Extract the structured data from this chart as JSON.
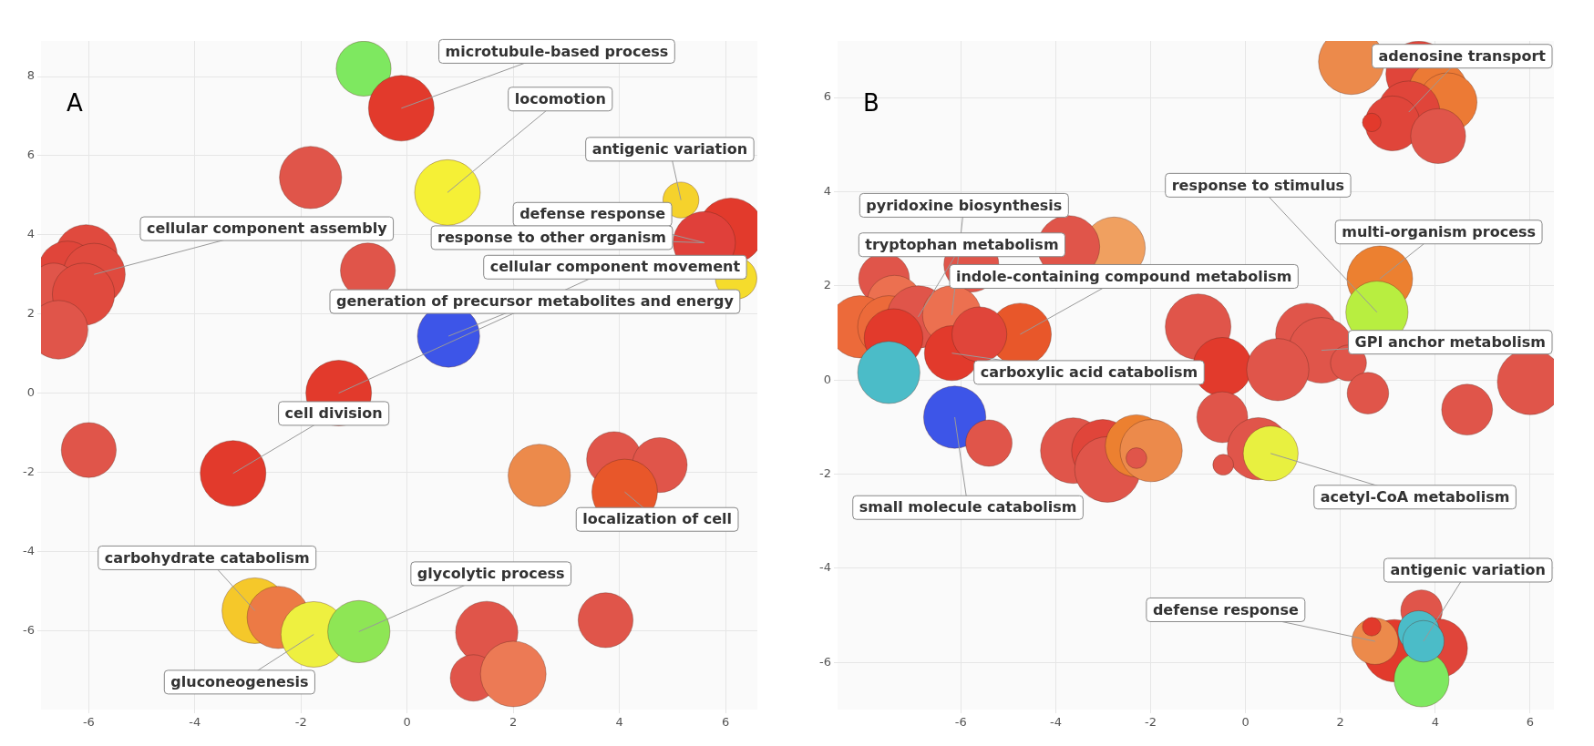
{
  "chart_data": [
    {
      "type": "bubble",
      "title": "A",
      "xlim": [
        -6.9,
        6.6
      ],
      "ylim": [
        -8,
        8.9
      ],
      "xticks": [
        -6,
        -4,
        -2,
        0,
        2,
        4,
        6
      ],
      "yticks": [
        -6,
        -4,
        -2,
        0,
        2,
        4,
        6,
        8
      ],
      "grid": true,
      "legend": false,
      "x": [
        -0.82,
        -0.11,
        -1.82,
        0.76,
        5.16,
        6.1,
        5.6,
        6.2,
        -0.74,
        -6.05,
        -6.4,
        -5.9,
        -6.66,
        -6.1,
        -6.57,
        0.78,
        -1.29,
        -6.0,
        -3.28,
        2.49,
        3.9,
        4.76,
        4.1,
        -2.87,
        -2.43,
        -1.76,
        -0.91,
        1.5,
        3.74,
        1.25,
        2.0
      ],
      "values": [
        8.2,
        7.2,
        5.45,
        5.07,
        4.88,
        4.1,
        3.8,
        2.9,
        3.1,
        3.47,
        3.1,
        3.0,
        2.7,
        2.5,
        1.6,
        1.44,
        0,
        -1.44,
        -2.03,
        -2.08,
        -1.67,
        -1.82,
        -2.5,
        -5.5,
        -5.67,
        -6.1,
        -6.03,
        -6.05,
        -5.74,
        -7.2,
        -7.1
      ],
      "sizes": [
        0.7,
        1,
        0.9,
        1,
        0.3,
        1,
        0.9,
        0.4,
        0.7,
        0.9,
        0.8,
        0.9,
        0.5,
        0.9,
        0.8,
        0.9,
        1,
        0.7,
        1,
        0.9,
        0.7,
        0.7,
        1,
        1,
        0.9,
        1,
        0.9,
        0.9,
        0.7,
        0.5,
        1
      ],
      "colors": [
        "#7ee860",
        "#e23a2c",
        "#e0554a",
        "#f5f036",
        "#f5d22c",
        "#e23a2c",
        "#e0403a",
        "#f5dc2c",
        "#e0554a",
        "#e04a3e",
        "#e0453a",
        "#e04a3e",
        "#e0554a",
        "#e04a3e",
        "#e0554a",
        "#3d55e8",
        "#e23a2c",
        "#e0554a",
        "#e23a2c",
        "#ec8a4b",
        "#e0554a",
        "#e0554a",
        "#e8572a",
        "#f5c82a",
        "#ec7a45",
        "#eef040",
        "#8ee655",
        "#e0554a",
        "#e0554a",
        "#e0554a",
        "#ec7a55"
      ],
      "annotations": [
        {
          "text": "microtubule-based process",
          "x": -0.11,
          "y": 7.2
        },
        {
          "text": "locomotion",
          "x": 0.76,
          "y": 5.07
        },
        {
          "text": "antigenic variation",
          "x": 5.16,
          "y": 4.88
        },
        {
          "text": "defense response",
          "x": 5.6,
          "y": 3.8
        },
        {
          "text": "response to other organism",
          "x": 5.6,
          "y": 3.8
        },
        {
          "text": "cellular component assembly",
          "x": -5.9,
          "y": 3.0
        },
        {
          "text": "cellular component movement",
          "x": -1.29,
          "y": 0
        },
        {
          "text": "generation of precursor metabolites and energy",
          "x": 0.78,
          "y": 1.44
        },
        {
          "text": "cell division",
          "x": -3.28,
          "y": -2.03
        },
        {
          "text": "localization of cell",
          "x": 4.1,
          "y": -2.5
        },
        {
          "text": "carbohydrate catabolism",
          "x": -2.87,
          "y": -5.5
        },
        {
          "text": "glycolytic process",
          "x": -0.91,
          "y": -6.03
        },
        {
          "text": "gluconeogenesis",
          "x": -1.76,
          "y": -6.1
        }
      ]
    },
    {
      "type": "bubble",
      "title": "B",
      "xlim": [
        -8.6,
        6.5
      ],
      "ylim": [
        -7,
        7.2
      ],
      "xticks": [
        -6,
        -4,
        -2,
        0,
        2,
        4,
        6
      ],
      "yticks": [
        -6,
        -4,
        -2,
        0,
        2,
        4,
        6
      ],
      "grid": true,
      "legend": false,
      "x": [
        2.23,
        3.65,
        4.06,
        4.26,
        3.44,
        3.1,
        4.06,
        2.66,
        2.83,
        2.77,
        -2.77,
        -3.73,
        -5.78,
        -7.62,
        -7.4,
        -8.13,
        -7.52,
        -6.9,
        -6.19,
        -7.42,
        -7.52,
        -6.19,
        -4.75,
        -5.61,
        -6.13,
        -5.41,
        -1.0,
        -0.49,
        1.29,
        1.6,
        2.17,
        0.68,
        2.58,
        4.67,
        6.0,
        -0.49,
        0.27,
        -0.47,
        0.53,
        -3.63,
        -3.01,
        -2.91,
        -2.3,
        -1.99,
        -2.3,
        3.71,
        3.14,
        4.06,
        3.71,
        2.73,
        2.66,
        3.65,
        3.75
      ],
      "values": [
        6.76,
        6.5,
        6.15,
        5.9,
        5.69,
        5.45,
        5.18,
        5.47,
        2.15,
        1.44,
        2.8,
        2.83,
        2.45,
        2.15,
        1.64,
        1.13,
        1.13,
        1.34,
        1.38,
        0.89,
        0.16,
        0.57,
        0.97,
        0.97,
        -0.79,
        -1.34,
        1.13,
        0.28,
        0.97,
        0.63,
        0.36,
        0.22,
        -0.28,
        -0.63,
        -0.04,
        -0.79,
        -1.46,
        -1.8,
        -1.56,
        -1.5,
        -1.5,
        -1.9,
        -1.4,
        -1.5,
        -1.66,
        -4.9,
        -5.75,
        -5.7,
        -6.36,
        -5.55,
        -5.24,
        -5.34,
        -5.55
      ],
      "sizes": [
        1,
        1,
        0.8,
        0.8,
        0.9,
        0.7,
        0.7,
        0.08,
        1,
        0.9,
        0.9,
        0.9,
        0.7,
        0.6,
        0.7,
        0.9,
        0.9,
        0.9,
        0.8,
        0.8,
        0.9,
        0.7,
        0.9,
        0.7,
        0.9,
        0.5,
        1,
        0.8,
        0.9,
        1,
        0.3,
        0.9,
        0.4,
        0.6,
        1,
        0.6,
        0.9,
        0.1,
        0.7,
        1,
        0.9,
        1,
        0.9,
        0.9,
        0.1,
        0.4,
        0.9,
        0.8,
        0.7,
        0.5,
        0.08,
        0.4,
        0.4
      ],
      "colors": [
        "#ec8a4b",
        "#e0453a",
        "#ec7a35",
        "#ec7a35",
        "#e0453a",
        "#e0453a",
        "#e0554a",
        "#e23a2c",
        "#ec8030",
        "#b8ee40",
        "#f0a060",
        "#e0554a",
        "#e0554a",
        "#e0554a",
        "#ec7050",
        "#ec6a3a",
        "#ec6a3a",
        "#e0554a",
        "#ec7050",
        "#e23a2c",
        "#4bbcc8",
        "#e23a2c",
        "#e8572a",
        "#e0453a",
        "#3d55e8",
        "#e0554a",
        "#e0554a",
        "#e23a2c",
        "#e0554a",
        "#e0554a",
        "#e0554a",
        "#e0554a",
        "#e0554a",
        "#e0554a",
        "#e0554a",
        "#e0554a",
        "#e0554a",
        "#e0554a",
        "#e8f040",
        "#e0554a",
        "#e0453a",
        "#e0554a",
        "#ec8030",
        "#ec8a4b",
        "#e0554a",
        "#e0554a",
        "#e23a2c",
        "#e0453a",
        "#7ee860",
        "#ec8a4b",
        "#e23a2c",
        "#4bbcc8",
        "#4bbcc8"
      ],
      "annotations": [
        {
          "text": "adenosine transport",
          "x": 3.44,
          "y": 5.69
        },
        {
          "text": "response to stimulus",
          "x": 2.77,
          "y": 1.44
        },
        {
          "text": "multi-organism process",
          "x": 2.83,
          "y": 2.15
        },
        {
          "text": "pyridoxine biosynthesis",
          "x": -6.19,
          "y": 1.38
        },
        {
          "text": "tryptophan metabolism",
          "x": -6.9,
          "y": 1.34
        },
        {
          "text": "indole-containing compound metabolism",
          "x": -4.75,
          "y": 0.97
        },
        {
          "text": "GPI anchor metabolism",
          "x": 1.6,
          "y": 0.63
        },
        {
          "text": "carboxylic acid catabolism",
          "x": -6.19,
          "y": 0.57
        },
        {
          "text": "small molecule catabolism",
          "x": -6.13,
          "y": -0.79
        },
        {
          "text": "acetyl-CoA metabolism",
          "x": 0.53,
          "y": -1.56
        },
        {
          "text": "defense response",
          "x": 2.73,
          "y": -5.55
        },
        {
          "text": "antigenic variation",
          "x": 3.75,
          "y": -5.55
        }
      ]
    }
  ]
}
